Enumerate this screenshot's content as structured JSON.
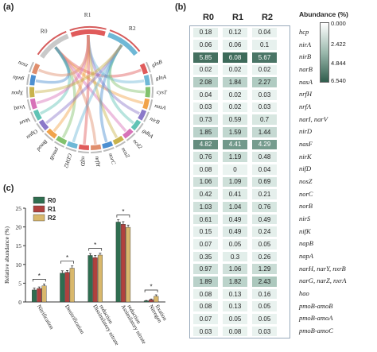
{
  "panels": {
    "a": "(a)",
    "b": "(b)",
    "c": "(c)"
  },
  "chord": {
    "genes": [
      "glnB",
      "glnA",
      "cysT",
      "nasA",
      "nirB",
      "gdhA",
      "ncd2",
      "nosZ",
      "norC",
      "nrfH",
      "nifD",
      "GDH2",
      "pmoB",
      "Bmod",
      "Oguu",
      "Vouu",
      "Vxaq",
      "Xpou",
      "gudu",
      "zsou"
    ],
    "samples": [
      "R0",
      "R1",
      "R2"
    ]
  },
  "chart_data": [
    {
      "type": "heatmap",
      "title": "",
      "columns": [
        "R0",
        "R1",
        "R2"
      ],
      "rows": [
        "hcp",
        "nirA",
        "nirB",
        "narB",
        "nasA",
        "nrfH",
        "nrfA",
        "narI, narV",
        "nirD",
        "nasF",
        "nirK",
        "nifD",
        "nosZ",
        "norC",
        "norB",
        "nirS",
        "nifK",
        "napB",
        "napA",
        "narH, narY, nxrB",
        "narG, narZ, nxrA",
        "hao",
        "pmoB-amoB",
        "pmoB-amoA",
        "pmoB-amoC"
      ],
      "values": [
        [
          0.18,
          0.12,
          0.04
        ],
        [
          0.06,
          0.06,
          0.1
        ],
        [
          5.85,
          6.08,
          5.67
        ],
        [
          0.02,
          0.02,
          0.02
        ],
        [
          2.08,
          1.84,
          2.27
        ],
        [
          0.04,
          0.02,
          0.03
        ],
        [
          0.03,
          0.02,
          0.03
        ],
        [
          0.73,
          0.59,
          0.7
        ],
        [
          1.85,
          1.59,
          1.44
        ],
        [
          4.82,
          4.41,
          4.29
        ],
        [
          0.76,
          1.19,
          0.48
        ],
        [
          0.08,
          0,
          0.04
        ],
        [
          1.06,
          1.09,
          0.69
        ],
        [
          0.42,
          0.41,
          0.21
        ],
        [
          1.03,
          1.04,
          0.76
        ],
        [
          0.61,
          0.49,
          0.49
        ],
        [
          0.15,
          0.49,
          0.24
        ],
        [
          0.07,
          0.05,
          0.05
        ],
        [
          0.35,
          0.3,
          0.26
        ],
        [
          0.97,
          1.06,
          1.29
        ],
        [
          1.89,
          1.82,
          2.43
        ],
        [
          0.08,
          0.13,
          0.16
        ],
        [
          0.08,
          0.13,
          0.05
        ],
        [
          0.07,
          0.05,
          0.05
        ],
        [
          0.03,
          0.08,
          0.03
        ]
      ],
      "colorbar": {
        "title": "Abundance (%)",
        "ticks": [
          "0.000",
          "2.422",
          "4.844",
          "6.540"
        ],
        "range": [
          0,
          6.54
        ]
      },
      "colors": {
        "low": "#ffffff",
        "high": "#2f5d4c"
      }
    },
    {
      "type": "bar",
      "ylabel": "Relative abundance (%)",
      "ylim": [
        0,
        25
      ],
      "yticks": [
        0,
        5,
        10,
        15,
        20,
        25
      ],
      "categories": [
        "Nitrification",
        "Denitrification",
        "Dissimilatory nitrate reduction",
        "Assimilatory nitrate reduction",
        "Nitrogen fixation"
      ],
      "series": [
        {
          "name": "R0",
          "color": "#2f6e50",
          "values": [
            3.2,
            7.7,
            12.4,
            21.3,
            0.3
          ]
        },
        {
          "name": "R1",
          "color": "#b0413e",
          "values": [
            3.6,
            7.9,
            11.8,
            20.7,
            0.6
          ]
        },
        {
          "name": "R2",
          "color": "#d9b86c",
          "values": [
            4.3,
            9.0,
            12.5,
            19.9,
            1.5
          ]
        }
      ],
      "errors": [
        [
          0.5,
          0.6,
          0.5,
          0.6,
          0.1
        ],
        [
          0.4,
          0.5,
          0.6,
          0.7,
          0.2
        ],
        [
          0.5,
          0.6,
          0.5,
          0.6,
          0.4
        ]
      ],
      "significance": "*",
      "legend_position": "top-left"
    }
  ]
}
